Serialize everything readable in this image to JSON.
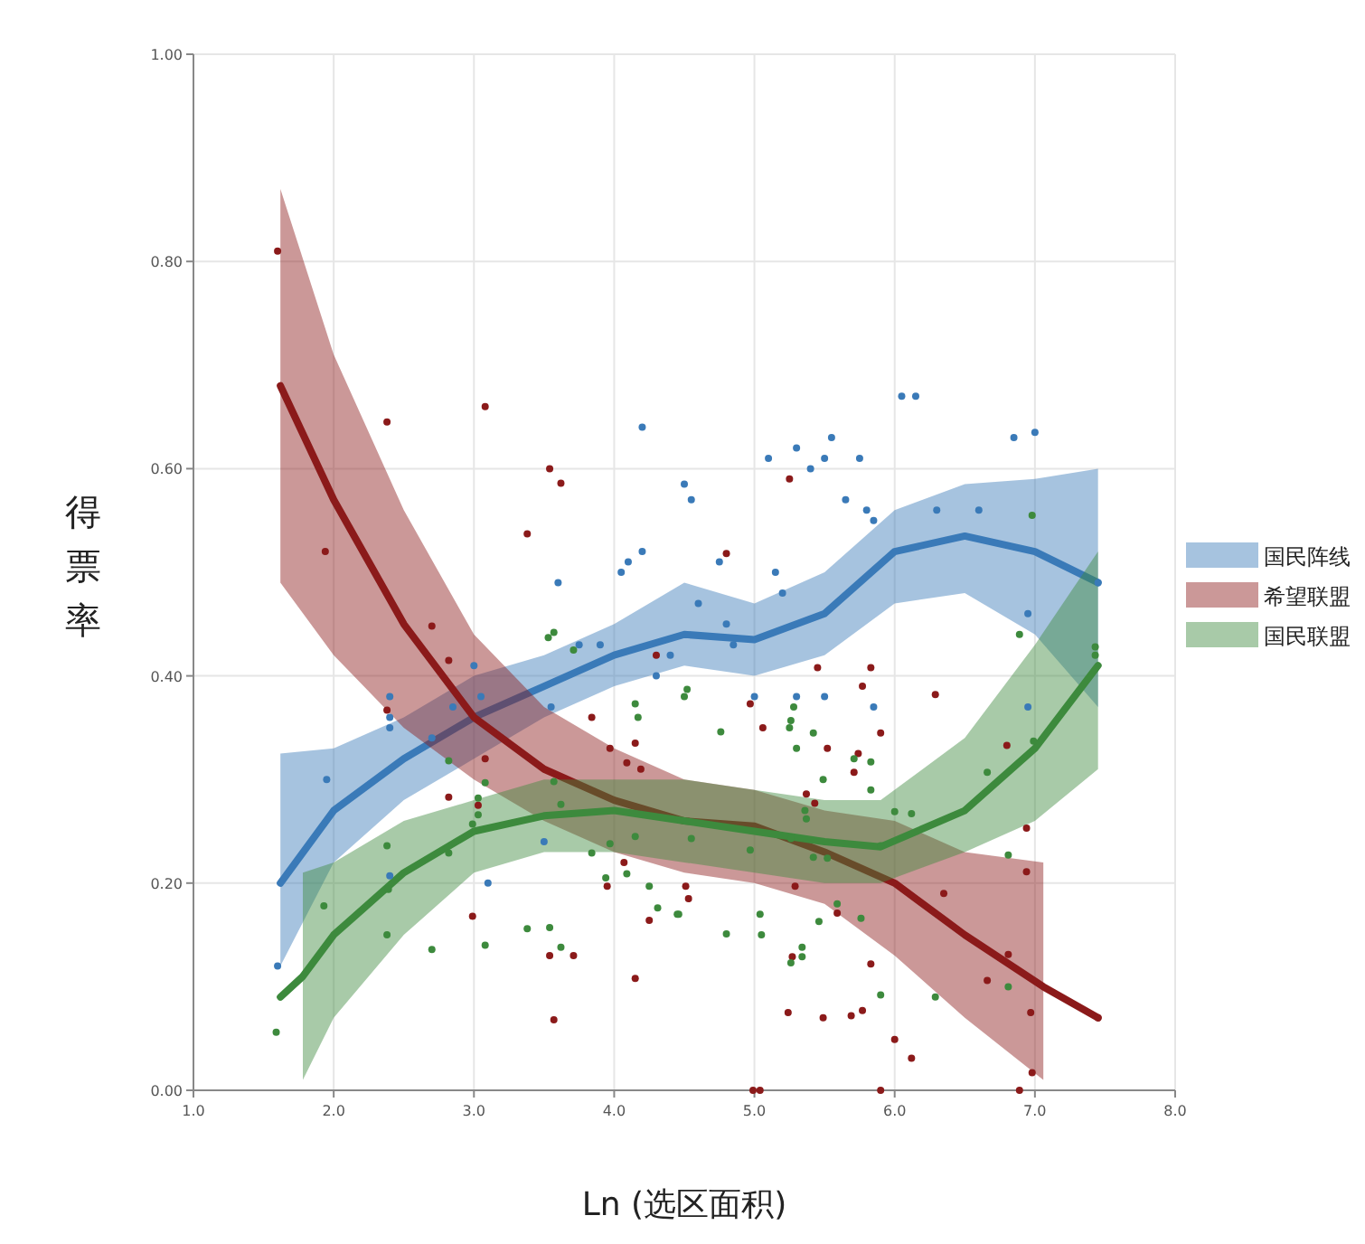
{
  "chart_data": {
    "type": "scatter",
    "xlabel": "Ln (选区面积)",
    "ylabel": "得票率",
    "xlim": [
      1.0,
      8.0
    ],
    "ylim": [
      0,
      1.0
    ],
    "xticks": [
      {
        "value": 1,
        "label": "1.0"
      },
      {
        "value": 2,
        "label": "2.0"
      },
      {
        "value": 3,
        "label": "3.0"
      },
      {
        "value": 4,
        "label": "4.0"
      },
      {
        "value": 5,
        "label": "5.0"
      },
      {
        "value": 6,
        "label": "6.0"
      },
      {
        "value": 7,
        "label": "7.0"
      },
      {
        "value": 8,
        "label": "8.0"
      }
    ],
    "yticks": [
      {
        "value": 0,
        "label": "0.00"
      },
      {
        "value": 0.2,
        "label": "0.20"
      },
      {
        "value": 0.4,
        "label": "0.40"
      },
      {
        "value": 0.6,
        "label": "0.60"
      },
      {
        "value": 0.8,
        "label": "0.80"
      },
      {
        "value": 1.0,
        "label": "1.00"
      }
    ],
    "grid": true,
    "legend": "right",
    "marker": "circle",
    "line_style": "solid",
    "series": [
      {
        "type": "line",
        "marker": "none",
        "name": "国民阵线",
        "color": "#3a7ab8",
        "x": [
          1.62,
          2.0,
          2.5,
          3.0,
          3.5,
          4.0,
          4.5,
          5.0,
          5.5,
          6.0,
          6.5,
          7.0,
          7.45
        ],
        "values": [
          0.2,
          0.27,
          0.32,
          0.36,
          0.39,
          0.42,
          0.44,
          0.435,
          0.46,
          0.52,
          0.535,
          0.52,
          0.49
        ],
        "lower": [
          0.12,
          0.22,
          0.28,
          0.32,
          0.36,
          0.39,
          0.41,
          0.4,
          0.42,
          0.47,
          0.48,
          0.44,
          0.37
        ],
        "upper": [
          0.325,
          0.33,
          0.36,
          0.4,
          0.42,
          0.45,
          0.49,
          0.47,
          0.5,
          0.56,
          0.585,
          0.59,
          0.6
        ]
      },
      {
        "type": "line",
        "marker": "none",
        "name": "希望联盟",
        "color": "#8b1a1a",
        "x": [
          1.62,
          2.0,
          2.5,
          3.0,
          3.5,
          4.0,
          4.5,
          5.0,
          5.5,
          6.0,
          6.5,
          7.06,
          7.45
        ],
        "values": [
          0.68,
          0.57,
          0.45,
          0.36,
          0.31,
          0.28,
          0.26,
          0.255,
          0.23,
          0.2,
          0.15,
          0.1,
          0.07
        ],
        "lower": [
          0.49,
          0.42,
          0.35,
          0.3,
          0.26,
          0.23,
          0.21,
          0.2,
          0.18,
          0.13,
          0.07,
          0.01,
          null
        ],
        "upper": [
          0.87,
          0.71,
          0.56,
          0.44,
          0.37,
          0.33,
          0.3,
          0.29,
          0.27,
          0.26,
          0.23,
          0.22,
          null
        ]
      },
      {
        "type": "line",
        "marker": "none",
        "name": "国民联盟",
        "color": "#3d8a3d",
        "x": [
          1.62,
          1.78,
          2.0,
          2.5,
          3.0,
          3.5,
          4.0,
          4.5,
          5.0,
          5.5,
          5.9,
          6.5,
          7.0,
          7.45
        ],
        "values": [
          0.09,
          0.11,
          0.15,
          0.21,
          0.25,
          0.265,
          0.27,
          0.26,
          0.25,
          0.24,
          0.235,
          0.27,
          0.33,
          0.41
        ],
        "lower": [
          null,
          0.01,
          0.07,
          0.15,
          0.21,
          0.23,
          0.23,
          0.22,
          0.21,
          0.2,
          0.2,
          0.23,
          0.26,
          0.31
        ],
        "upper": [
          null,
          0.21,
          0.22,
          0.26,
          0.28,
          0.3,
          0.3,
          0.3,
          0.29,
          0.28,
          0.28,
          0.34,
          0.43,
          0.52
        ]
      },
      {
        "color": "#3a7ab8",
        "x": [
          1.6,
          1.95,
          2.4,
          2.4,
          2.4,
          2.4,
          2.7,
          2.85,
          3.0,
          3.05,
          3.1,
          3.5,
          3.55,
          3.6,
          3.75,
          3.9,
          4.05,
          4.1,
          4.2,
          4.2,
          4.3,
          4.4,
          4.5,
          4.55,
          4.6,
          4.75,
          4.8,
          4.85,
          5.0,
          5.1,
          5.15,
          5.2,
          5.3,
          5.4,
          5.5,
          5.55,
          5.65,
          5.75,
          5.8,
          5.85,
          6.05,
          6.15,
          6.3,
          6.6,
          6.85,
          7.0,
          6.95,
          6.95,
          7.45,
          5.5,
          5.3,
          5.85
        ],
        "values": [
          0.12,
          0.3,
          0.38,
          0.36,
          0.35,
          0.207,
          0.34,
          0.37,
          0.41,
          0.38,
          0.2,
          0.24,
          0.37,
          0.49,
          0.43,
          0.43,
          0.5,
          0.51,
          0.52,
          0.64,
          0.4,
          0.42,
          0.585,
          0.57,
          0.47,
          0.51,
          0.45,
          0.43,
          0.38,
          0.61,
          0.5,
          0.48,
          0.62,
          0.6,
          0.61,
          0.63,
          0.57,
          0.61,
          0.56,
          0.55,
          0.67,
          0.67,
          0.56,
          0.56,
          0.63,
          0.635,
          0.46,
          0.37,
          0.49,
          0.38,
          0.38,
          0.37
        ]
      },
      {
        "color": "#8b1a1a",
        "x": [
          1.6,
          1.94,
          2.38,
          3.08,
          3.54,
          3.62,
          3.38,
          2.38,
          2.7,
          2.82,
          2.82,
          2.99,
          3.03,
          3.08,
          3.54,
          3.57,
          3.71,
          3.84,
          3.97,
          3.95,
          4.09,
          4.15,
          4.19,
          4.15,
          4.25,
          4.3,
          4.07,
          5.06,
          5.9,
          5.52,
          5.74,
          5.71,
          4.51,
          4.53,
          5.29,
          5.59,
          5.27,
          5.83,
          5.24,
          5.49,
          5.69,
          5.77,
          6.0,
          6.12,
          4.99,
          5.04,
          5.9,
          6.89,
          6.98,
          6.97,
          6.66,
          6.81,
          6.35,
          6.94,
          6.94,
          6.8,
          7.45,
          5.43,
          5.37,
          5.25,
          4.8,
          6.29,
          5.45,
          5.83,
          5.77,
          4.97
        ],
        "values": [
          0.81,
          0.52,
          0.645,
          0.66,
          0.6,
          0.586,
          0.537,
          0.367,
          0.448,
          0.415,
          0.283,
          0.168,
          0.275,
          0.32,
          0.13,
          0.068,
          0.13,
          0.36,
          0.33,
          0.197,
          0.316,
          0.335,
          0.31,
          0.108,
          0.164,
          0.42,
          0.22,
          0.35,
          0.345,
          0.33,
          0.325,
          0.307,
          0.197,
          0.185,
          0.197,
          0.171,
          0.129,
          0.122,
          0.075,
          0.07,
          0.072,
          0.077,
          0.049,
          0.031,
          0.0,
          0.0,
          0.0,
          0.0,
          0.017,
          0.075,
          0.106,
          0.131,
          0.19,
          0.211,
          0.253,
          0.333,
          0.07,
          0.277,
          0.286,
          0.59,
          0.518,
          0.382,
          0.408,
          0.408,
          0.39,
          0.373
        ]
      },
      {
        "color": "#3d8a3d",
        "x": [
          1.59,
          1.93,
          2.38,
          2.39,
          2.38,
          2.7,
          2.82,
          2.82,
          2.99,
          3.03,
          3.03,
          3.08,
          3.08,
          3.38,
          3.54,
          3.62,
          3.53,
          3.57,
          3.57,
          3.62,
          3.71,
          3.84,
          3.94,
          3.97,
          4.09,
          4.15,
          4.17,
          4.15,
          4.25,
          4.31,
          4.45,
          4.5,
          4.76,
          5.25,
          5.42,
          5.3,
          5.71,
          5.83,
          4.55,
          4.46,
          4.8,
          5.04,
          5.05,
          4.97,
          5.49,
          5.37,
          5.36,
          5.26,
          5.42,
          5.52,
          5.59,
          5.46,
          5.34,
          5.34,
          5.26,
          5.76,
          5.9,
          5.83,
          6.0,
          6.12,
          5.9,
          6.29,
          6.66,
          6.81,
          6.81,
          6.99,
          6.98,
          6.89,
          7.43,
          7.43,
          4.52,
          5.28,
          5.26
        ],
        "values": [
          0.056,
          0.178,
          0.236,
          0.194,
          0.15,
          0.136,
          0.318,
          0.229,
          0.257,
          0.282,
          0.266,
          0.297,
          0.14,
          0.156,
          0.157,
          0.138,
          0.437,
          0.442,
          0.298,
          0.276,
          0.425,
          0.229,
          0.205,
          0.238,
          0.209,
          0.373,
          0.36,
          0.245,
          0.197,
          0.176,
          0.17,
          0.38,
          0.346,
          0.35,
          0.345,
          0.33,
          0.32,
          0.317,
          0.243,
          0.17,
          0.151,
          0.17,
          0.15,
          0.232,
          0.3,
          0.262,
          0.27,
          0.243,
          0.225,
          0.224,
          0.18,
          0.163,
          0.138,
          0.129,
          0.123,
          0.166,
          0.092,
          0.29,
          0.269,
          0.267,
          0.236,
          0.09,
          0.307,
          0.1,
          0.227,
          0.337,
          0.555,
          0.44,
          0.428,
          0.42,
          0.387,
          0.37,
          0.357
        ]
      }
    ]
  }
}
